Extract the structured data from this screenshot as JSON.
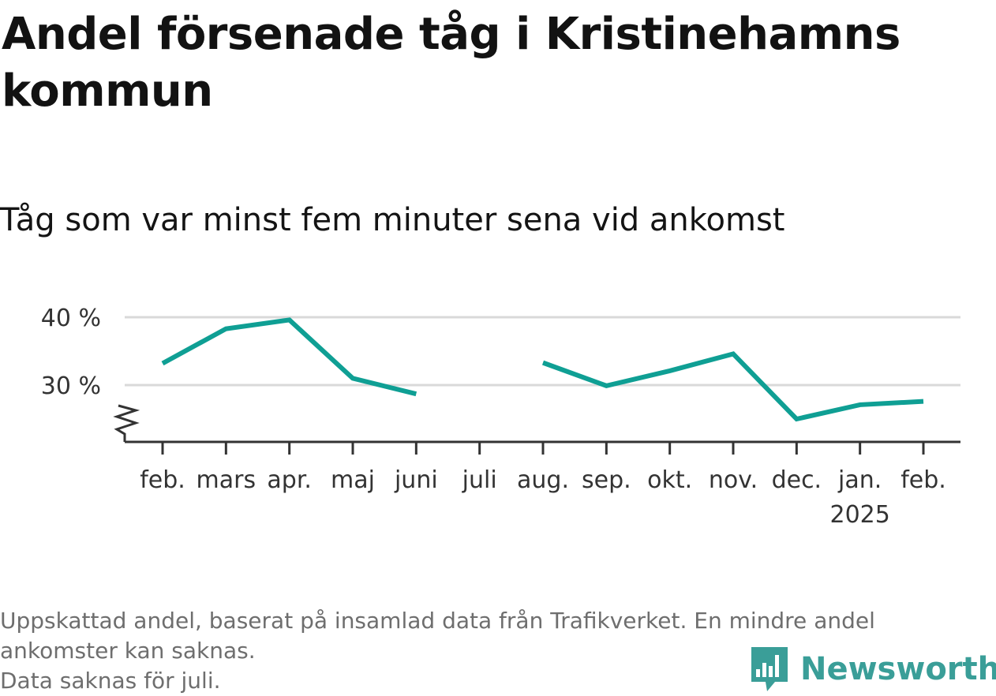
{
  "title": "Andel försenade tåg i Kristinehamns kommun",
  "subtitle": "Tåg som var minst fem minuter sena vid ankomst",
  "footer": {
    "line1": "Uppskattad andel, baserat på insamlad data från Trafikverket. En mindre andel",
    "line2": "ankomster kan saknas.",
    "line3": "Data saknas för juli."
  },
  "brand": {
    "name": "Newsworthy",
    "icon": "bar-chart-speech-bubble-icon",
    "color": "#3a9e98"
  },
  "colors": {
    "line": "#0f9f94",
    "grid": "#d9d9d9",
    "axis": "#333333",
    "text": "#333333"
  },
  "chart_data": {
    "type": "line",
    "x": [
      "feb.",
      "mars",
      "apr.",
      "maj",
      "juni",
      "juli",
      "aug.",
      "sep.",
      "okt.",
      "nov.",
      "dec.",
      "jan.",
      "feb."
    ],
    "year_labels": {
      "11": "2025"
    },
    "series": [
      {
        "values": [
          33.2,
          38.3,
          39.6,
          31.0,
          28.7,
          null,
          33.3,
          29.9,
          32.1,
          34.6,
          25.0,
          27.1,
          27.6
        ]
      }
    ],
    "yticks": [
      30,
      40
    ],
    "ytick_labels": [
      "30 %",
      "40 %"
    ],
    "ylim": [
      22,
      42
    ],
    "axis_break": true,
    "grid": true,
    "xlabel": "",
    "ylabel": ""
  }
}
